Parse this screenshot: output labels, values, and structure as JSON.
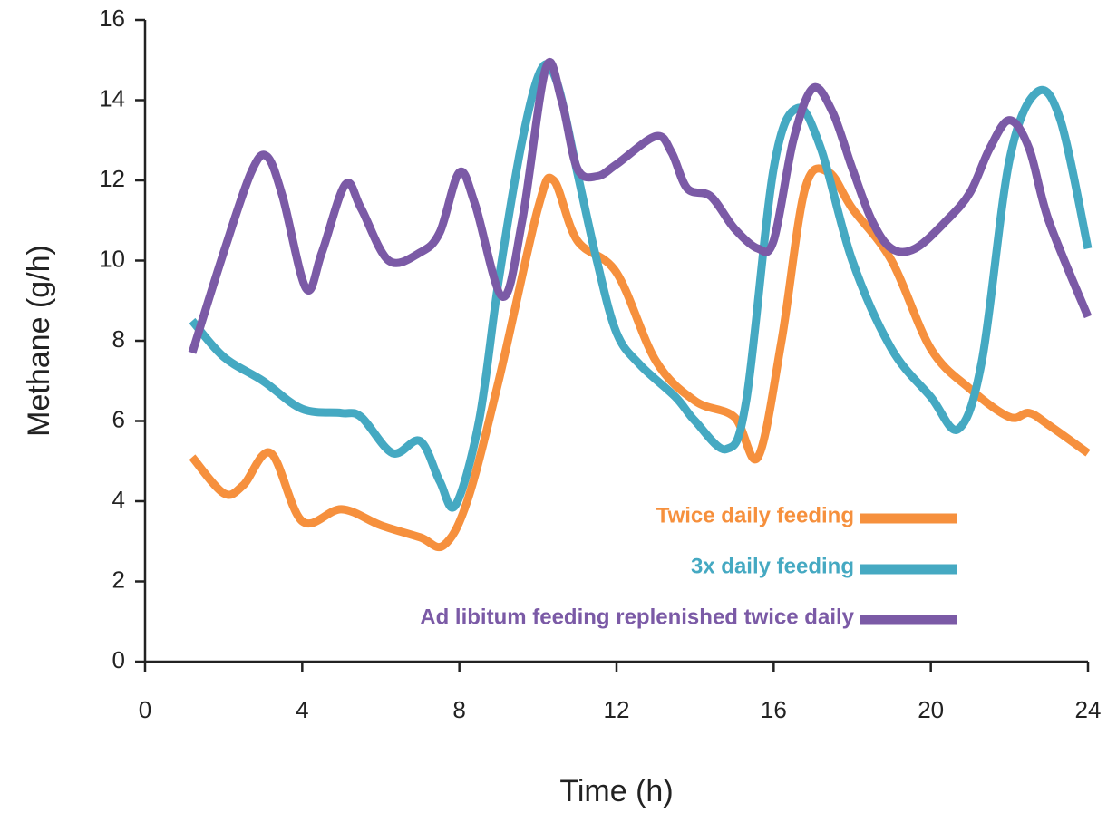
{
  "chart_data": {
    "type": "line",
    "x_label": "Time (h)",
    "y_label": "Methane (g/h)",
    "xlim": [
      0,
      24
    ],
    "xticks": [
      0,
      4,
      8,
      12,
      16,
      20,
      24
    ],
    "ylim": [
      0,
      16
    ],
    "yticks": [
      0,
      2,
      4,
      6,
      8,
      10,
      12,
      14,
      16
    ],
    "grid": false,
    "legend": "lower right",
    "series": [
      {
        "name": "Twice daily feeding",
        "color": "#f6903d",
        "x": [
          1.2,
          2,
          2.5,
          3.2,
          4,
          5,
          6,
          7,
          7.6,
          8.2,
          9,
          10,
          10.4,
          11,
          12,
          13,
          14,
          15,
          15.6,
          16.2,
          16.8,
          17.4,
          18,
          19,
          20,
          21,
          22,
          22.5,
          23,
          24
        ],
        "values": [
          5.1,
          4.2,
          4.4,
          5.2,
          3.5,
          3.8,
          3.4,
          3.1,
          2.9,
          4,
          7,
          11.3,
          12,
          10.5,
          9.7,
          7.5,
          6.5,
          6.1,
          5.1,
          8,
          11.8,
          12.2,
          11.3,
          10,
          7.8,
          6.8,
          6.1,
          6.2,
          5.9,
          5.2
        ]
      },
      {
        "name": "3x daily feeding",
        "color": "#45a9c2",
        "x": [
          1.2,
          2,
          3,
          4,
          5,
          5.5,
          6.3,
          7,
          7.5,
          7.9,
          8.5,
          9,
          9.6,
          10.1,
          10.5,
          11,
          11.5,
          12,
          12.6,
          13.5,
          14,
          14.8,
          15.3,
          16,
          16.6,
          17.2,
          18,
          19,
          20,
          20.7,
          21.3,
          22,
          22.7,
          23.3,
          24
        ],
        "values": [
          8.5,
          7.6,
          7,
          6.3,
          6.2,
          6.1,
          5.2,
          5.5,
          4.5,
          3.9,
          6,
          9.5,
          13,
          14.8,
          14.4,
          12.2,
          10,
          8.2,
          7.4,
          6.6,
          6,
          5.3,
          6.5,
          12.3,
          13.8,
          12.8,
          10,
          7.8,
          6.6,
          5.8,
          7.5,
          12.5,
          14.2,
          13.5,
          10.3
        ]
      },
      {
        "name": "Ad libitum feeding replenished twice daily",
        "color": "#7b5aa6",
        "x": [
          1.2,
          2,
          2.7,
          3.1,
          3.5,
          4.1,
          4.5,
          5.1,
          5.5,
          6.2,
          7,
          7.5,
          8,
          8.4,
          9.1,
          9.6,
          10.2,
          10.6,
          11,
          11.5,
          12,
          13,
          13.4,
          13.8,
          14.4,
          15,
          15.6,
          16,
          16.5,
          17,
          17.5,
          18,
          18.5,
          19,
          19.6,
          20.4,
          21,
          21.5,
          22,
          22.5,
          23,
          24
        ],
        "values": [
          7.7,
          10.2,
          12.2,
          12.6,
          11.6,
          9.3,
          10.2,
          11.9,
          11.3,
          10,
          10.2,
          10.7,
          12.2,
          11.4,
          9.1,
          11,
          14.8,
          14,
          12.3,
          12.1,
          12.4,
          13.1,
          12.7,
          11.8,
          11.6,
          10.8,
          10.3,
          10.5,
          13,
          14.3,
          13.7,
          12.3,
          11,
          10.3,
          10.3,
          11,
          11.7,
          12.8,
          13.5,
          12.8,
          11,
          8.6
        ]
      }
    ]
  }
}
